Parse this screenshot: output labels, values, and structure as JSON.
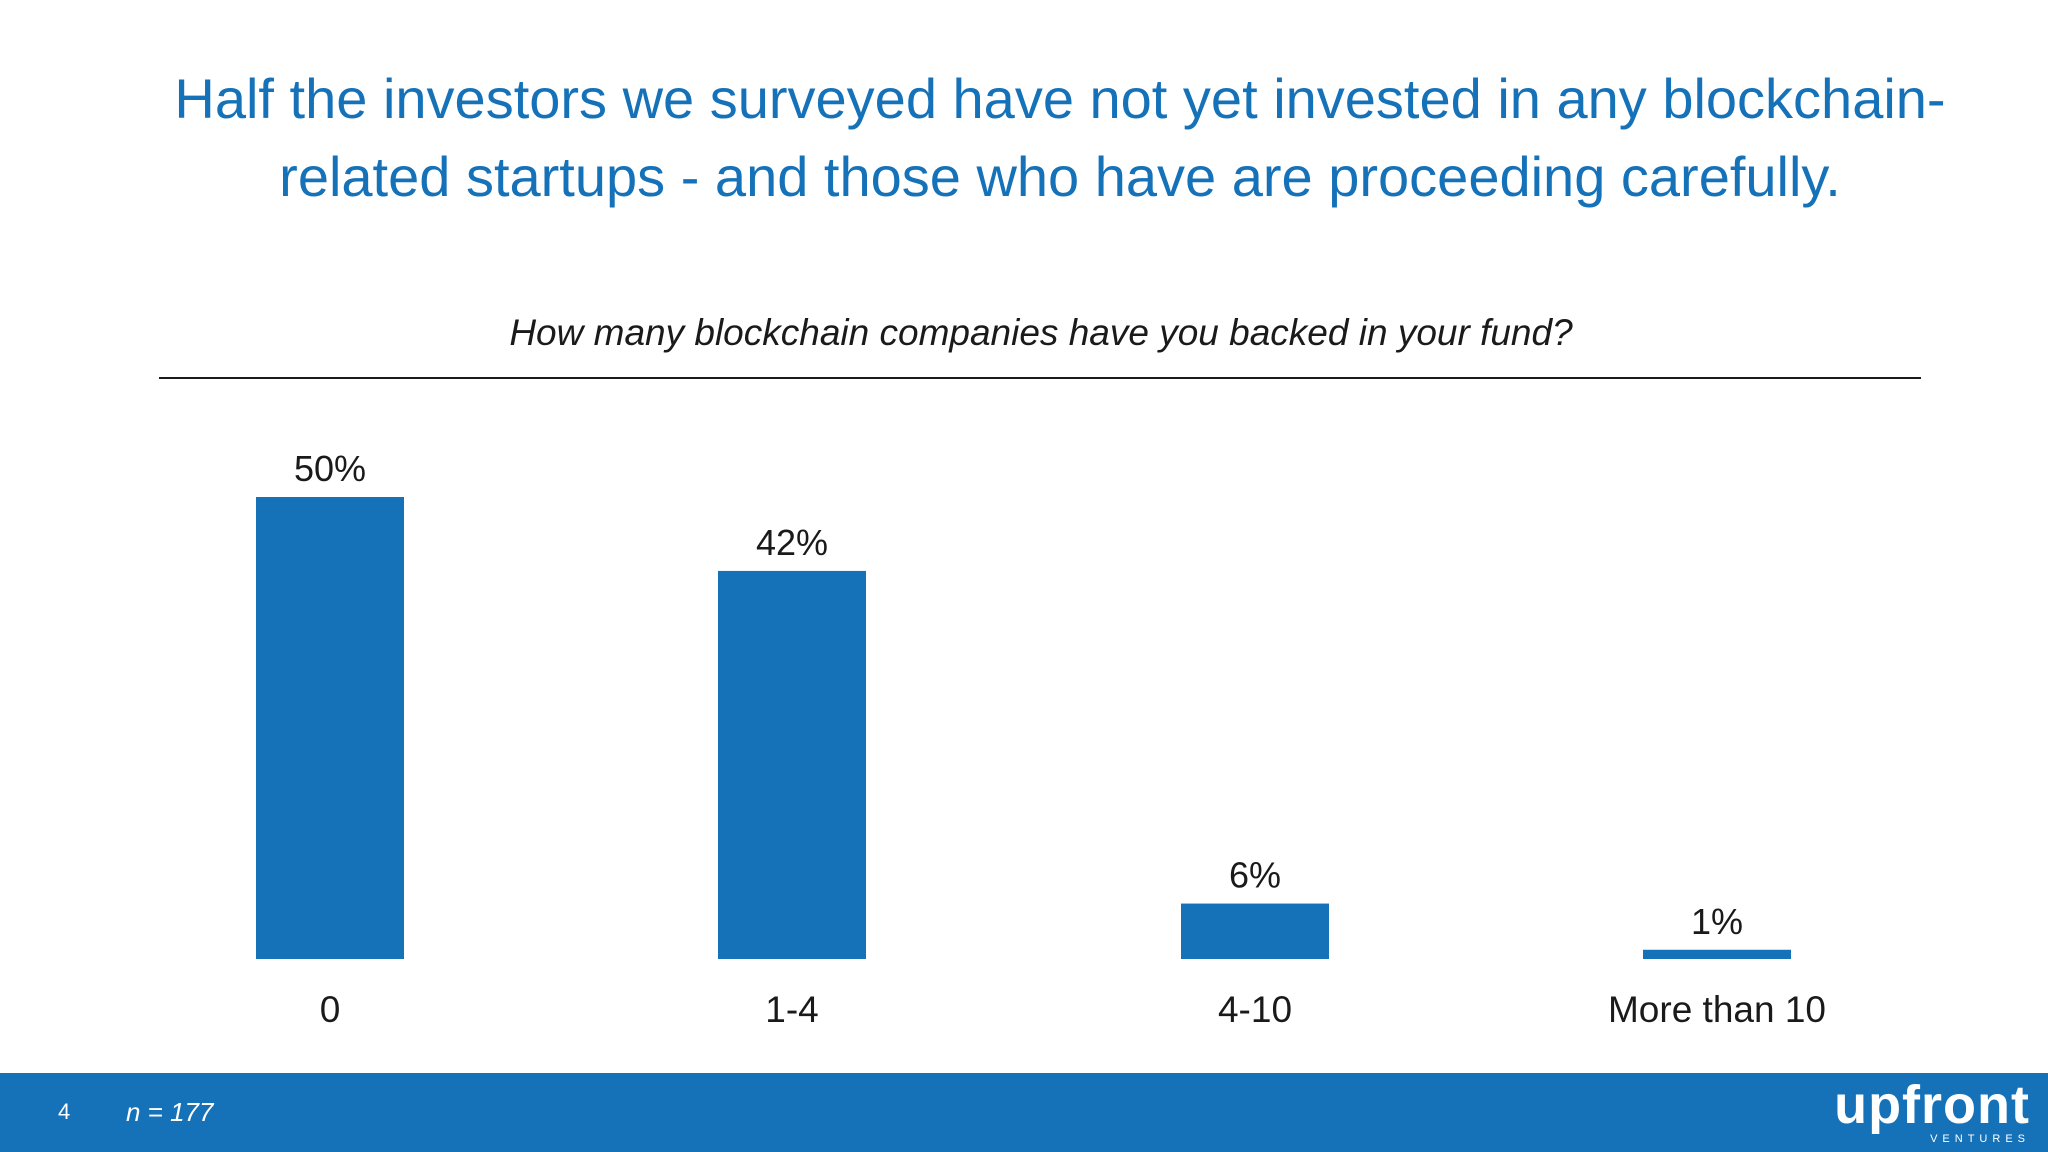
{
  "headline": "Half the investors we surveyed have not yet invested in any blockchain-related startups - and those who have are proceeding carefully.",
  "colors": {
    "accent": "#1572b9",
    "bar": "#1572b9",
    "text": "#1a1a1a"
  },
  "chart_data": {
    "type": "bar",
    "title": "How many blockchain companies have you backed in your fund?",
    "categories": [
      "0",
      "1-4",
      "4-10",
      "More than 10"
    ],
    "values": [
      50,
      42,
      6,
      1
    ],
    "data_labels": [
      "50%",
      "42%",
      "6%",
      "1%"
    ],
    "ylim": [
      0,
      50
    ],
    "xlabel": "",
    "ylabel": "",
    "grid": false,
    "legend": "none"
  },
  "footer": {
    "page_number": "4",
    "sample_size": "n = 177",
    "logo_word": "upfront",
    "logo_sub": "VENTURES"
  }
}
